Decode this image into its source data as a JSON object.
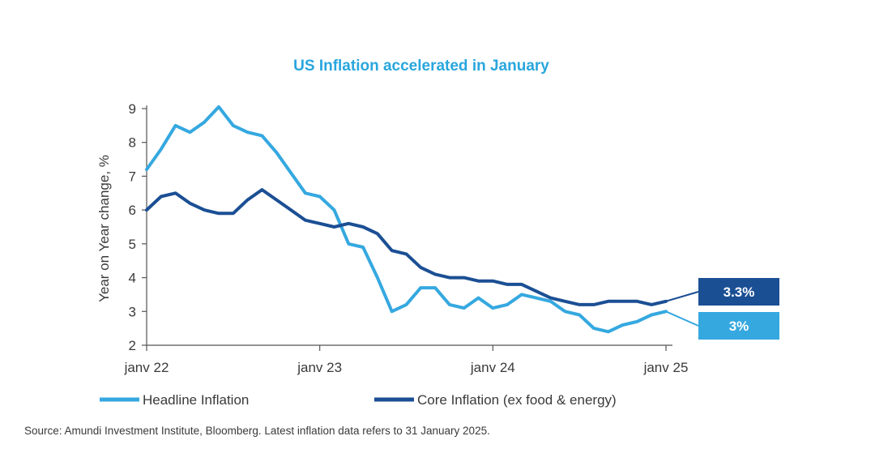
{
  "chart_data": {
    "type": "line",
    "title": "US Inflation  accelerated   in January",
    "ylabel": "Year on Year change, %",
    "xlabel": "",
    "ylim": [
      2,
      9
    ],
    "yticks": [
      "2",
      "3",
      "4",
      "5",
      "6",
      "7",
      "8",
      "9"
    ],
    "xticks": [
      {
        "index": 0,
        "label": "janv 22"
      },
      {
        "index": 12,
        "label": "janv 23"
      },
      {
        "index": 24,
        "label": "janv 24"
      },
      {
        "index": 36,
        "label": "janv 25"
      }
    ],
    "series": [
      {
        "name": "Headline Inflation",
        "color": "#35a8e0",
        "values": [
          7.2,
          7.8,
          8.5,
          8.3,
          8.6,
          9.05,
          8.5,
          8.3,
          8.2,
          7.7,
          7.1,
          6.5,
          6.4,
          6.0,
          5.0,
          4.9,
          4.0,
          3.0,
          3.2,
          3.7,
          3.7,
          3.2,
          3.1,
          3.4,
          3.1,
          3.2,
          3.5,
          3.4,
          3.3,
          3.0,
          2.9,
          2.5,
          2.4,
          2.6,
          2.7,
          2.9,
          3.0
        ]
      },
      {
        "name": "Core Inflation (ex food & energy)",
        "color": "#1b4f94",
        "values": [
          6.0,
          6.4,
          6.5,
          6.2,
          6.0,
          5.9,
          5.9,
          6.3,
          6.6,
          6.3,
          6.0,
          5.7,
          5.6,
          5.5,
          5.6,
          5.5,
          5.3,
          4.8,
          4.7,
          4.3,
          4.1,
          4.0,
          4.0,
          3.9,
          3.9,
          3.8,
          3.8,
          3.6,
          3.4,
          3.3,
          3.2,
          3.2,
          3.3,
          3.3,
          3.3,
          3.2,
          3.3
        ]
      }
    ],
    "callouts": [
      {
        "label": "3.3%",
        "series": "Core Inflation (ex food & energy)",
        "color": "#1b4f94"
      },
      {
        "label": "3%",
        "series": "Headline Inflation",
        "color": "#35a8e0"
      }
    ],
    "legend_position": "bottom",
    "grid": false,
    "title_color": "#29a6dd",
    "source": "Source: Amundi Investment Institute,  Bloomberg.  Latest inflation  data refers to 31 January 2025."
  }
}
